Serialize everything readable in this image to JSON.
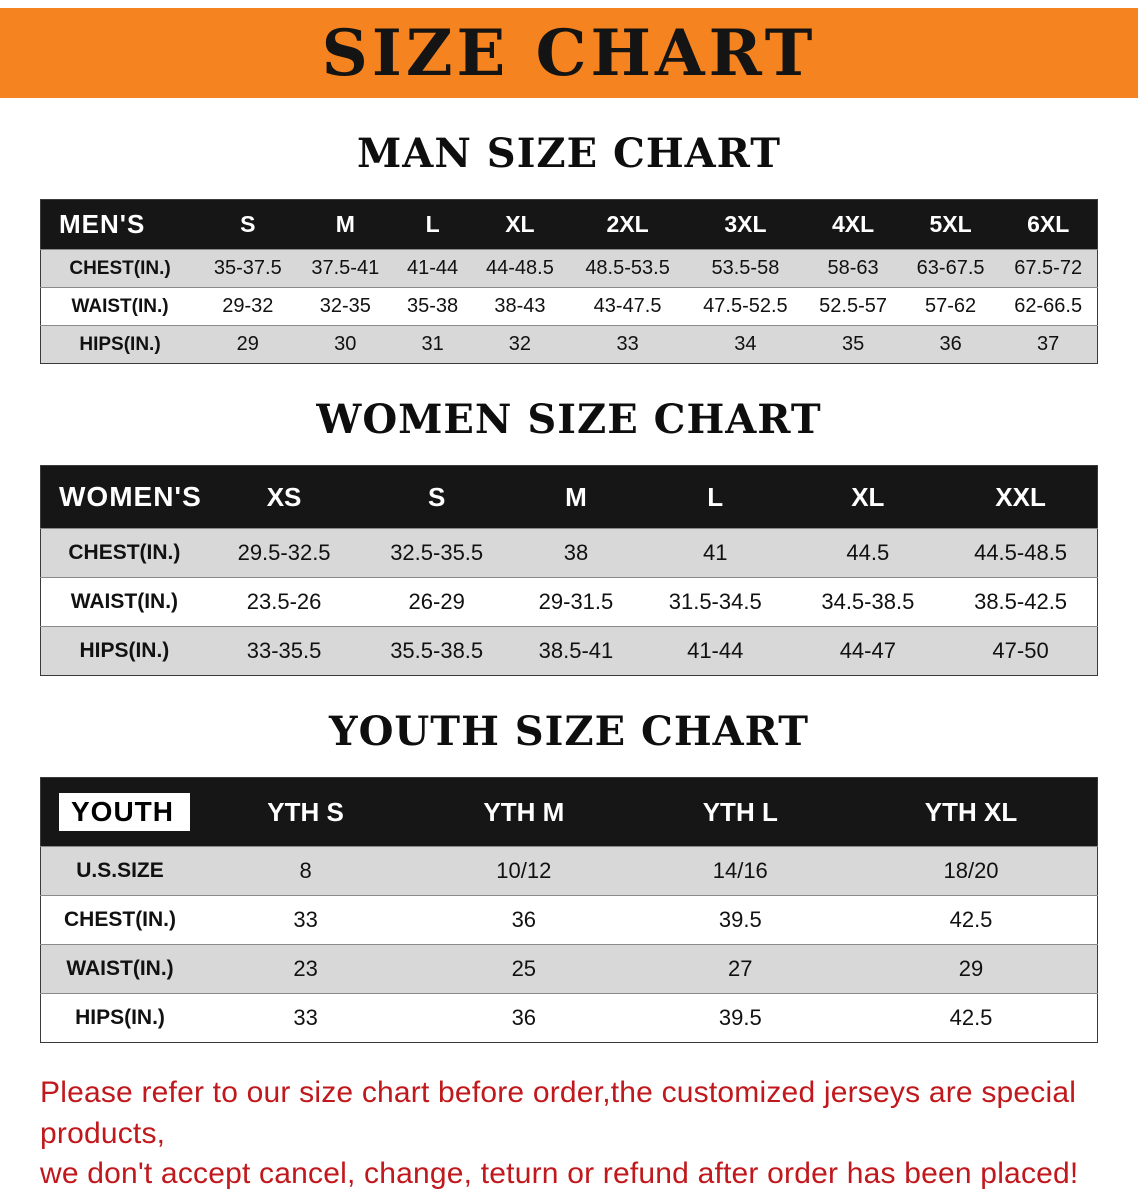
{
  "banner": {
    "title": "SIZE CHART"
  },
  "sections": [
    {
      "heading": "MAN SIZE CHART",
      "table": {
        "header": [
          "MEN'S",
          "S",
          "M",
          "L",
          "XL",
          "2XL",
          "3XL",
          "4XL",
          "5XL",
          "6XL"
        ],
        "rows": [
          [
            "CHEST(IN.)",
            "35-37.5",
            "37.5-41",
            "41-44",
            "44-48.5",
            "48.5-53.5",
            "53.5-58",
            "58-63",
            "63-67.5",
            "67.5-72"
          ],
          [
            "WAIST(IN.)",
            "29-32",
            "32-35",
            "35-38",
            "38-43",
            "43-47.5",
            "47.5-52.5",
            "52.5-57",
            "57-62",
            "62-66.5"
          ],
          [
            "HIPS(IN.)",
            "29",
            "30",
            "31",
            "32",
            "33",
            "34",
            "35",
            "36",
            "37"
          ]
        ]
      }
    },
    {
      "heading": "WOMEN SIZE CHART",
      "table": {
        "header": [
          "WOMEN'S",
          "XS",
          "S",
          "M",
          "L",
          "XL",
          "XXL"
        ],
        "rows": [
          [
            "CHEST(IN.)",
            "29.5-32.5",
            "32.5-35.5",
            "38",
            "41",
            "44.5",
            "44.5-48.5"
          ],
          [
            "WAIST(IN.)",
            "23.5-26",
            "26-29",
            "29-31.5",
            "31.5-34.5",
            "34.5-38.5",
            "38.5-42.5"
          ],
          [
            "HIPS(IN.)",
            "33-35.5",
            "35.5-38.5",
            "38.5-41",
            "41-44",
            "44-47",
            "47-50"
          ]
        ]
      }
    },
    {
      "heading": "YOUTH SIZE CHART",
      "table": {
        "header": [
          "YOUTH",
          "YTH S",
          "YTH M",
          "YTH L",
          "YTH XL"
        ],
        "rows": [
          [
            "U.S.SIZE",
            "8",
            "10/12",
            "14/16",
            "18/20"
          ],
          [
            "CHEST(IN.)",
            "33",
            "36",
            "39.5",
            "42.5"
          ],
          [
            "WAIST(IN.)",
            "23",
            "25",
            "27",
            "29"
          ],
          [
            "HIPS(IN.)",
            "33",
            "36",
            "39.5",
            "42.5"
          ]
        ]
      }
    }
  ],
  "disclaimer": {
    "line1": "Please refer to our size chart before order,the customized jerseys are special products,",
    "line2": "we don't accept cancel, change, teturn or refund after order has been placed!"
  },
  "colors": {
    "banner_bg": "#F5831F",
    "table_header_bg": "#161616",
    "row_alt_gray": "#D8D8D8",
    "disclaimer_red": "#C0181C"
  }
}
